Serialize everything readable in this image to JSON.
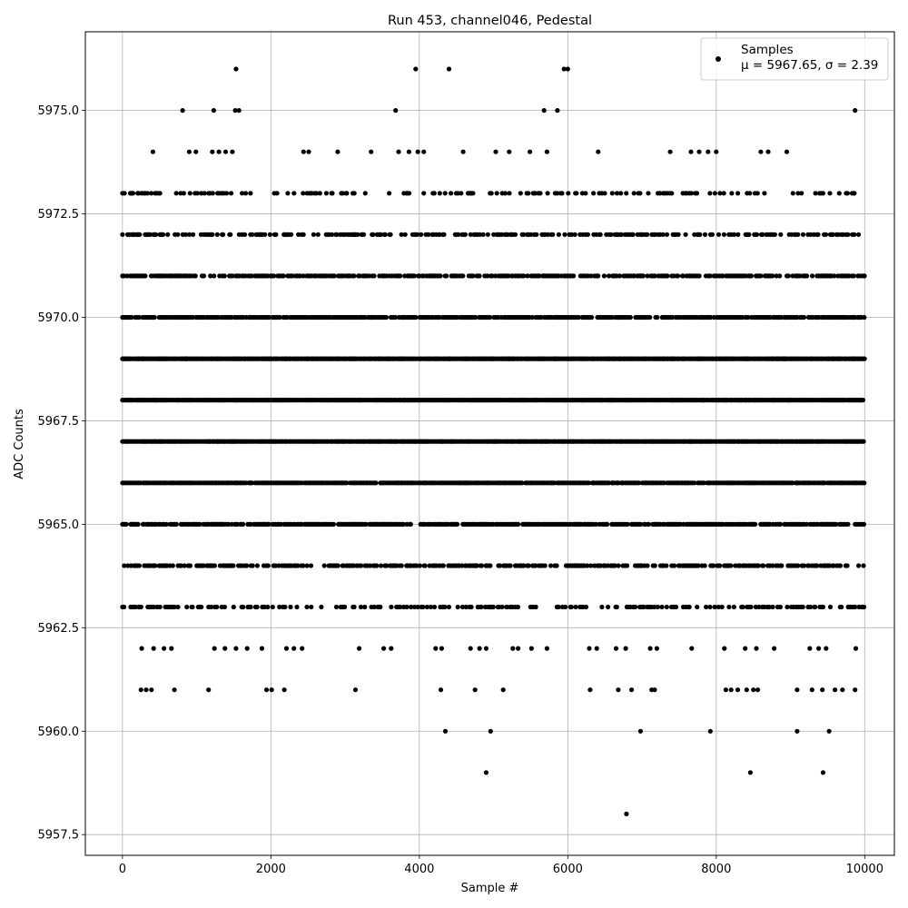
{
  "chart_data": {
    "type": "scatter",
    "title": "Run 453, channel046, Pedestal",
    "xlabel": "Sample #",
    "ylabel": "ADC Counts",
    "xlim": [
      -500,
      10400
    ],
    "ylim": [
      5957.0,
      5976.9
    ],
    "xticks": [
      0,
      2000,
      4000,
      6000,
      8000,
      10000
    ],
    "xtick_labels": [
      "0",
      "2000",
      "4000",
      "6000",
      "8000",
      "10000"
    ],
    "yticks": [
      5957.5,
      5960.0,
      5962.5,
      5965.0,
      5967.5,
      5970.0,
      5972.5,
      5975.0
    ],
    "ytick_labels": [
      "5957.5",
      "5960.0",
      "5962.5",
      "5965.0",
      "5967.5",
      "5970.0",
      "5972.5",
      "5975.0"
    ],
    "grid": true,
    "legend": {
      "position": "top-right",
      "label": "Samples",
      "stats": "μ = 5967.65, σ = 2.39"
    },
    "marker_color": "#000000",
    "n_samples": 10000,
    "mean": 5967.65,
    "sigma": 2.39,
    "series": [
      {
        "name": "Samples",
        "points": [
          [
            4900,
            5959
          ],
          [
            8460,
            5959
          ],
          [
            9440,
            5959
          ],
          [
            6790,
            5958
          ],
          [
            4350,
            5960
          ],
          [
            4960,
            5960
          ],
          [
            6980,
            5960
          ],
          [
            7920,
            5960
          ],
          [
            9090,
            5960
          ],
          [
            9520,
            5960
          ],
          [
            1530,
            5976
          ],
          [
            3950,
            5976
          ],
          [
            4400,
            5976
          ],
          [
            5950,
            5976
          ],
          [
            6000,
            5976
          ],
          [
            810,
            5975
          ],
          [
            1230,
            5975
          ],
          [
            1520,
            5975
          ],
          [
            1570,
            5975
          ],
          [
            3680,
            5975
          ],
          [
            5680,
            5975
          ],
          [
            5860,
            5975
          ],
          [
            9870,
            5975
          ],
          [
            410,
            5974
          ],
          [
            900,
            5974
          ],
          [
            990,
            5974
          ],
          [
            1210,
            5974
          ],
          [
            1300,
            5974
          ],
          [
            1390,
            5974
          ],
          [
            1480,
            5974
          ],
          [
            2440,
            5974
          ],
          [
            2510,
            5974
          ],
          [
            2900,
            5974
          ],
          [
            3350,
            5974
          ],
          [
            3720,
            5974
          ],
          [
            3860,
            5974
          ],
          [
            3980,
            5974
          ],
          [
            4060,
            5974
          ],
          [
            4590,
            5974
          ],
          [
            5030,
            5974
          ],
          [
            5210,
            5974
          ],
          [
            5490,
            5974
          ],
          [
            5720,
            5974
          ],
          [
            6410,
            5974
          ],
          [
            7380,
            5974
          ],
          [
            7660,
            5974
          ],
          [
            7770,
            5974
          ],
          [
            7890,
            5974
          ],
          [
            8000,
            5974
          ],
          [
            8600,
            5974
          ],
          [
            8700,
            5974
          ],
          [
            8950,
            5974
          ],
          [
            260,
            5962
          ],
          [
            420,
            5962
          ],
          [
            560,
            5962
          ],
          [
            660,
            5962
          ],
          [
            1240,
            5962
          ],
          [
            1380,
            5962
          ],
          [
            1530,
            5962
          ],
          [
            1680,
            5962
          ],
          [
            1880,
            5962
          ],
          [
            2210,
            5962
          ],
          [
            2310,
            5962
          ],
          [
            2420,
            5962
          ],
          [
            3190,
            5962
          ],
          [
            3520,
            5962
          ],
          [
            3620,
            5962
          ],
          [
            4220,
            5962
          ],
          [
            4300,
            5962
          ],
          [
            4690,
            5962
          ],
          [
            4810,
            5962
          ],
          [
            4900,
            5962
          ],
          [
            5260,
            5962
          ],
          [
            5330,
            5962
          ],
          [
            5510,
            5962
          ],
          [
            5720,
            5962
          ],
          [
            6290,
            5962
          ],
          [
            6390,
            5962
          ],
          [
            6650,
            5962
          ],
          [
            6780,
            5962
          ],
          [
            7110,
            5962
          ],
          [
            7200,
            5962
          ],
          [
            7670,
            5962
          ],
          [
            8110,
            5962
          ],
          [
            8390,
            5962
          ],
          [
            8540,
            5962
          ],
          [
            8780,
            5962
          ],
          [
            9260,
            5962
          ],
          [
            9380,
            5962
          ],
          [
            9480,
            5962
          ],
          [
            9880,
            5962
          ],
          [
            250,
            5961
          ],
          [
            320,
            5961
          ],
          [
            390,
            5961
          ],
          [
            700,
            5961
          ],
          [
            1160,
            5961
          ],
          [
            1940,
            5961
          ],
          [
            2010,
            5961
          ],
          [
            2180,
            5961
          ],
          [
            3140,
            5961
          ],
          [
            4290,
            5961
          ],
          [
            4750,
            5961
          ],
          [
            5130,
            5961
          ],
          [
            6300,
            5961
          ],
          [
            6680,
            5961
          ],
          [
            6860,
            5961
          ],
          [
            7130,
            5961
          ],
          [
            7170,
            5961
          ],
          [
            8130,
            5961
          ],
          [
            8200,
            5961
          ],
          [
            8290,
            5961
          ],
          [
            8410,
            5961
          ],
          [
            8500,
            5961
          ],
          [
            8560,
            5961
          ],
          [
            9090,
            5961
          ],
          [
            9290,
            5961
          ],
          [
            9430,
            5961
          ],
          [
            9600,
            5961
          ],
          [
            9700,
            5961
          ],
          [
            9870,
            5961
          ]
        ]
      }
    ],
    "dense_levels": [
      {
        "y": 5963,
        "density": 0.35
      },
      {
        "y": 5964,
        "density": 0.6
      },
      {
        "y": 5965,
        "density": 0.8
      },
      {
        "y": 5966,
        "density": 0.95
      },
      {
        "y": 5967,
        "density": 1.0
      },
      {
        "y": 5968,
        "density": 1.0
      },
      {
        "y": 5969,
        "density": 1.0
      },
      {
        "y": 5970,
        "density": 0.85
      },
      {
        "y": 5971,
        "density": 0.65
      },
      {
        "y": 5972,
        "density": 0.45
      },
      {
        "y": 5973,
        "density": 0.25
      }
    ]
  }
}
